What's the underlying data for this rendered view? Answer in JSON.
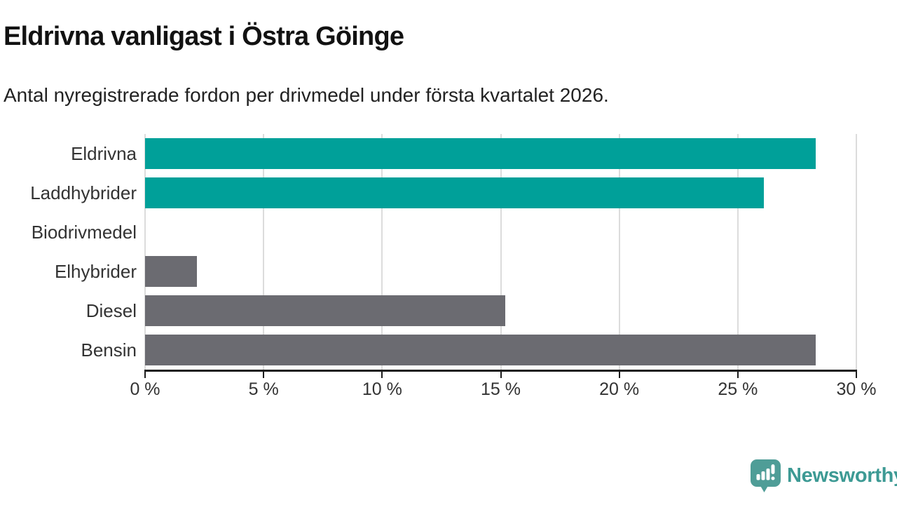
{
  "header": {
    "title": "Eldrivna vanligast i Östra Göinge",
    "subtitle": "Antal nyregistrerade fordon per drivmedel under första kvartalet 2026."
  },
  "chart_data": {
    "type": "bar",
    "orientation": "horizontal",
    "title": "Eldrivna vanligast i Östra Göinge",
    "subtitle": "Antal nyregistrerade fordon per drivmedel under första kvartalet 2026.",
    "categories": [
      "Eldrivna",
      "Laddhybrider",
      "Biodrivmedel",
      "Elhybrider",
      "Diesel",
      "Bensin"
    ],
    "values": [
      28.3,
      26.1,
      0,
      2.2,
      15.2,
      28.3
    ],
    "unit": "%",
    "bar_colors": [
      "#00a099",
      "#00a099",
      "#00a099",
      "#6b6b71",
      "#6b6b71",
      "#6b6b71"
    ],
    "xlim": [
      0,
      30
    ],
    "x_ticks": [
      0,
      5,
      10,
      15,
      20,
      25,
      30
    ],
    "x_tick_labels": [
      "0 %",
      "5 %",
      "10 %",
      "15 %",
      "20 %",
      "25 %",
      "30 %"
    ],
    "grid": "vertical-gridlines-on",
    "legend": "none"
  },
  "colors": {
    "accent_teal": "#00a099",
    "neutral_gray": "#6b6b71",
    "axis": "#1c1c1c",
    "gridline": "#dcdcdc",
    "label_text": "#333333",
    "brand_teal": "#3d9a94",
    "logo_bubble": "#4f9d97"
  },
  "footer": {
    "brand": "Newsworthy"
  }
}
